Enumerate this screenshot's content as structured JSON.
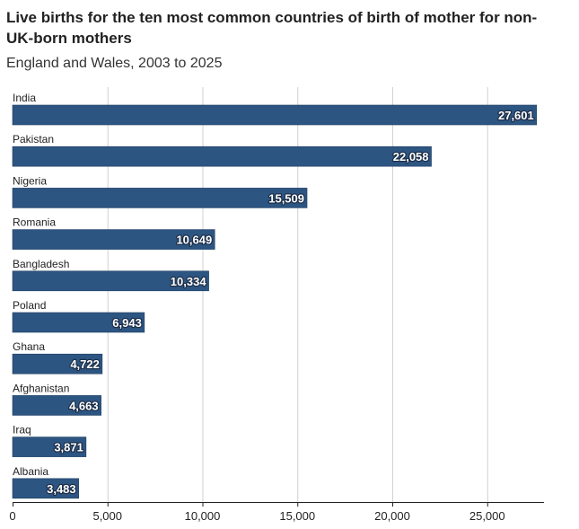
{
  "chart_data": {
    "type": "bar",
    "orientation": "horizontal",
    "title": "Live births for the ten most common countries of birth of mother for non-UK-born mothers",
    "subtitle": "England and Wales, 2003 to 2025",
    "xlabel": "",
    "ylabel": "",
    "categories": [
      "India",
      "Pakistan",
      "Nigeria",
      "Romania",
      "Bangladesh",
      "Poland",
      "Ghana",
      "Afghanistan",
      "Iraq",
      "Albania"
    ],
    "values": [
      27601,
      22058,
      15509,
      10649,
      10334,
      6943,
      4722,
      4663,
      3871,
      3483
    ],
    "value_labels": [
      "27,601",
      "22,058",
      "15,509",
      "10,649",
      "10,334",
      "6,943",
      "4,722",
      "4,663",
      "3,871",
      "3,483"
    ],
    "xlim": [
      0,
      28000
    ],
    "x_ticks": [
      0,
      5000,
      10000,
      15000,
      20000,
      25000
    ],
    "x_tick_labels": [
      "0",
      "5,000",
      "10,000",
      "15,000",
      "20,000",
      "25,000"
    ],
    "grid": true,
    "bar_color": "#2d5582"
  }
}
